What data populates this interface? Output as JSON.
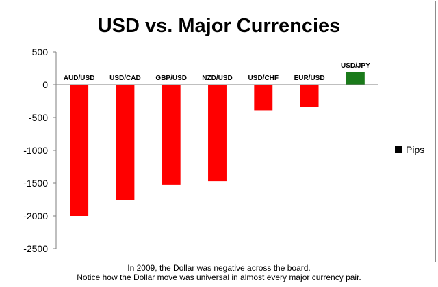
{
  "chart_data": {
    "type": "bar",
    "title": "USD vs. Major Currencies",
    "categories": [
      "AUD/USD",
      "USD/CAD",
      "GBP/USD",
      "NZD/USD",
      "USD/CHF",
      "EUR/USD",
      "USD/JPY"
    ],
    "series": [
      {
        "name": "Pips",
        "values": [
          -2000,
          -1760,
          -1530,
          -1470,
          -390,
          -340,
          190
        ],
        "colors": [
          "#ff0000",
          "#ff0000",
          "#ff0000",
          "#ff0000",
          "#ff0000",
          "#ff0000",
          "#1a7a1a"
        ]
      }
    ],
    "ylim": [
      -2500,
      500
    ],
    "yticks": [
      500,
      0,
      -500,
      -1000,
      -1500,
      -2000,
      -2500
    ],
    "grid": false,
    "legend_position": "right"
  },
  "caption": {
    "line1": "In 2009, the Dollar was negative across the board.",
    "line2": "Notice how the Dollar move was universal in almost every major currency pair."
  }
}
